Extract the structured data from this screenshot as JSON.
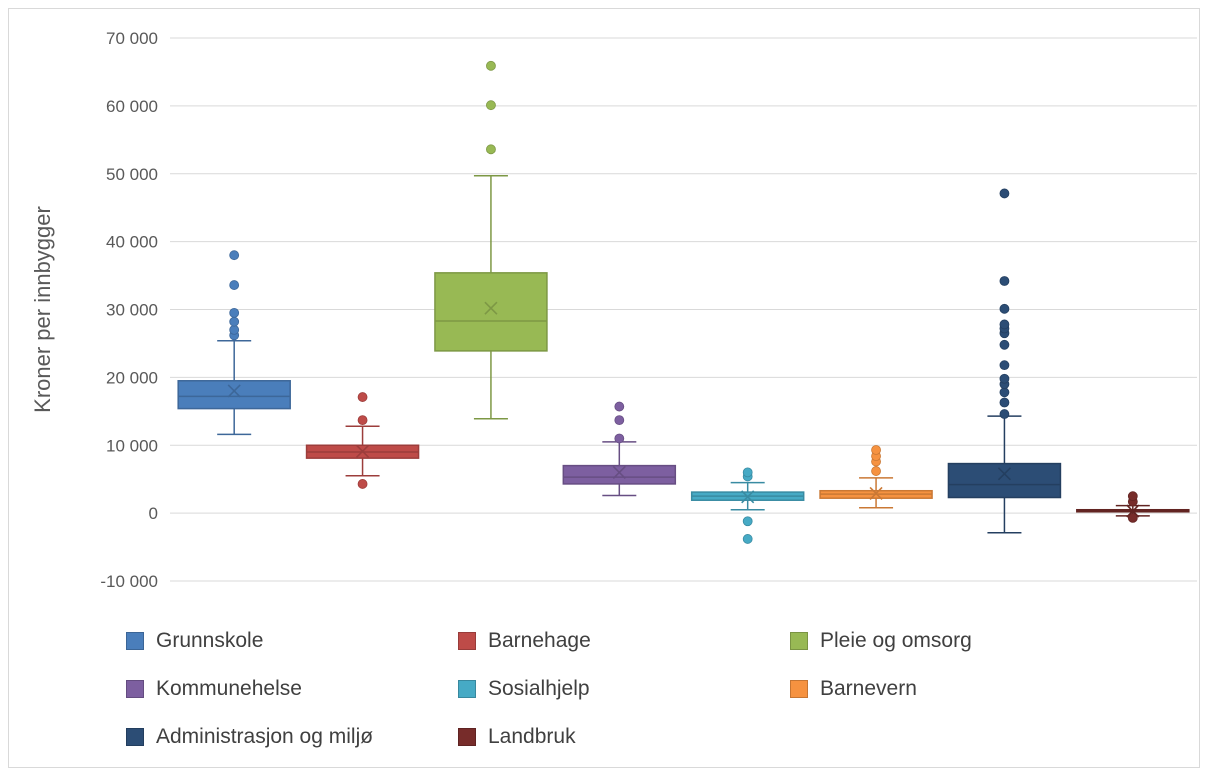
{
  "chart_data": {
    "type": "boxplot",
    "title": "",
    "xlabel": "",
    "ylabel": "Kroner per innbygger",
    "ylim": [
      -10000,
      70000
    ],
    "yticks": [
      -10000,
      0,
      10000,
      20000,
      30000,
      40000,
      50000,
      60000,
      70000
    ],
    "ytick_labels": [
      "-10 000",
      "0",
      "10 000",
      "20 000",
      "30 000",
      "40 000",
      "50 000",
      "60 000",
      "70 000"
    ],
    "grid": true,
    "legend_position": "bottom",
    "series": [
      {
        "name": "Grunnskole",
        "color": "#4a7ebb",
        "min": 11600,
        "q1": 15400,
        "median": 17200,
        "q3": 19500,
        "max": 25400,
        "mean": 18000,
        "outliers": [
          26200,
          27000,
          28200,
          29500,
          33600,
          38000
        ]
      },
      {
        "name": "Barnehage",
        "color": "#be4b48",
        "min": 5500,
        "q1": 8100,
        "median": 9000,
        "q3": 10000,
        "max": 12800,
        "mean": 9100,
        "outliers": [
          4300,
          13700,
          17100
        ]
      },
      {
        "name": "Pleie og omsorg",
        "color": "#98b954",
        "min": 13900,
        "q1": 23900,
        "median": 28300,
        "q3": 35400,
        "max": 49700,
        "mean": 30200,
        "outliers": [
          53600,
          60100,
          65900
        ]
      },
      {
        "name": "Kommunehelse",
        "color": "#7d5fa0",
        "min": 2600,
        "q1": 4300,
        "median": 5300,
        "q3": 7000,
        "max": 10500,
        "mean": 6000,
        "outliers": [
          11000,
          13700,
          15700
        ]
      },
      {
        "name": "Sosialhjelp",
        "color": "#46aac5",
        "min": 500,
        "q1": 1900,
        "median": 2500,
        "q3": 3100,
        "max": 4500,
        "mean": 2400,
        "outliers": [
          -3800,
          -1200,
          5400,
          6000
        ]
      },
      {
        "name": "Barnevern",
        "color": "#f69240",
        "min": 800,
        "q1": 2200,
        "median": 2800,
        "q3": 3300,
        "max": 5200,
        "mean": 2900,
        "outliers": [
          6200,
          7600,
          8400,
          9300
        ]
      },
      {
        "name": "Administrasjon og miljø",
        "color": "#2c4d75",
        "min": -2900,
        "q1": 2300,
        "median": 4200,
        "q3": 7300,
        "max": 14300,
        "mean": 5800,
        "outliers": [
          14600,
          16300,
          17800,
          19000,
          19800,
          21800,
          24800,
          26500,
          27200,
          27800,
          30100,
          34200,
          47100
        ]
      },
      {
        "name": "Landbruk",
        "color": "#772c2a",
        "min": -400,
        "q1": 200,
        "median": 400,
        "q3": 500,
        "max": 1100,
        "mean": 300,
        "outliers": [
          -700,
          1700,
          2500
        ]
      }
    ]
  }
}
